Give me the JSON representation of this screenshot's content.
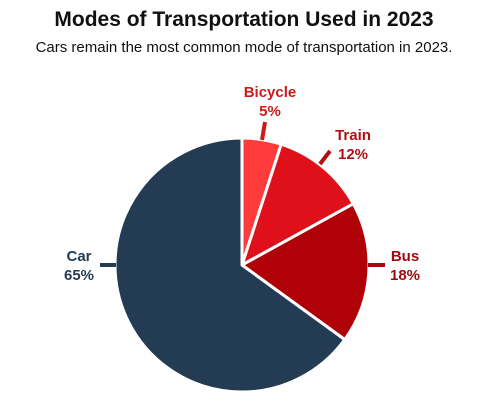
{
  "chart_data": {
    "type": "pie",
    "title": "Modes of Transportation Used in 2023",
    "subtitle": "Cars remain the most common mode of transportation in 2023.",
    "slices": [
      {
        "name": "Bicycle",
        "value": 5,
        "label": "5%",
        "color": "#ff3b3b"
      },
      {
        "name": "Train",
        "value": 12,
        "label": "12%",
        "color": "#e0101a"
      },
      {
        "name": "Bus",
        "value": 18,
        "label": "18%",
        "color": "#b00008"
      },
      {
        "name": "Car",
        "value": 65,
        "label": "65%",
        "color": "#233c54"
      }
    ],
    "label_colors": {
      "Bicycle": "#cc1a1a",
      "Train": "#b30d14",
      "Bus": "#a00a10",
      "Car": "#233c54"
    },
    "start_angle_deg": 0,
    "direction": "clockwise",
    "legend": "none"
  }
}
